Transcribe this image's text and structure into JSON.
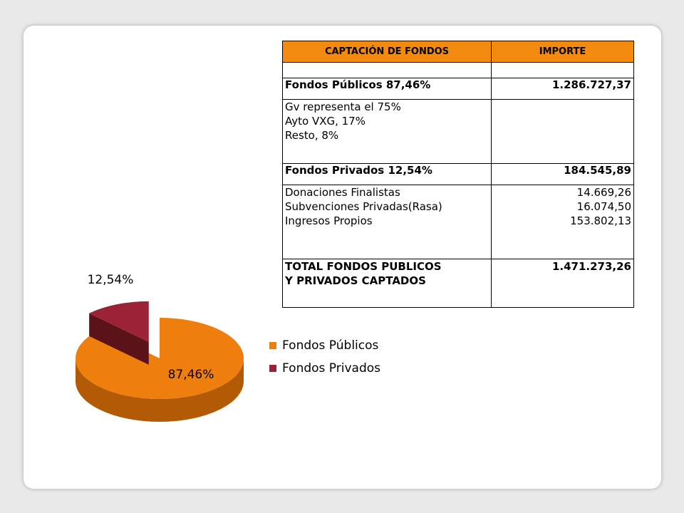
{
  "table": {
    "header": {
      "col1": "CAPTACIÓN  DE FONDOS",
      "col2": "IMPORTE"
    },
    "rows": [
      {
        "label": "Fondos Públicos  87,46%",
        "value": "1.286.727,37"
      },
      {
        "lines": [
          " Gv representa el 75%",
          "Ayto VXG, 17%",
          "Resto, 8%"
        ]
      },
      {
        "label": "Fondos Privados 12,54%",
        "value": "184.545,89"
      },
      {
        "lines": [
          " Donaciones Finalistas",
          "Subvenciones Privadas(Rasa)",
          "Ingresos Propios"
        ],
        "values": [
          "14.669,26",
          "16.074,50",
          "153.802,13"
        ]
      },
      {
        "lines": [
          "TOTAL FONDOS PUBLICOS",
          "Y PRIVADOS CAPTADOS"
        ],
        "value": "1.471.273,26"
      }
    ]
  },
  "chart_data": {
    "type": "pie",
    "style": "3d-exploded",
    "categories": [
      "Fondos Públicos",
      "Fondos Privados"
    ],
    "values": [
      87.46,
      12.54
    ],
    "data_labels": [
      "87,46%",
      "12,54%"
    ],
    "colors": [
      "#ee7f0e",
      "#9b2335"
    ],
    "side_colors": [
      "#b35a06",
      "#5c1219"
    ],
    "legend": {
      "position": "right",
      "entries": [
        "Fondos Públicos",
        "Fondos Privados"
      ]
    }
  }
}
